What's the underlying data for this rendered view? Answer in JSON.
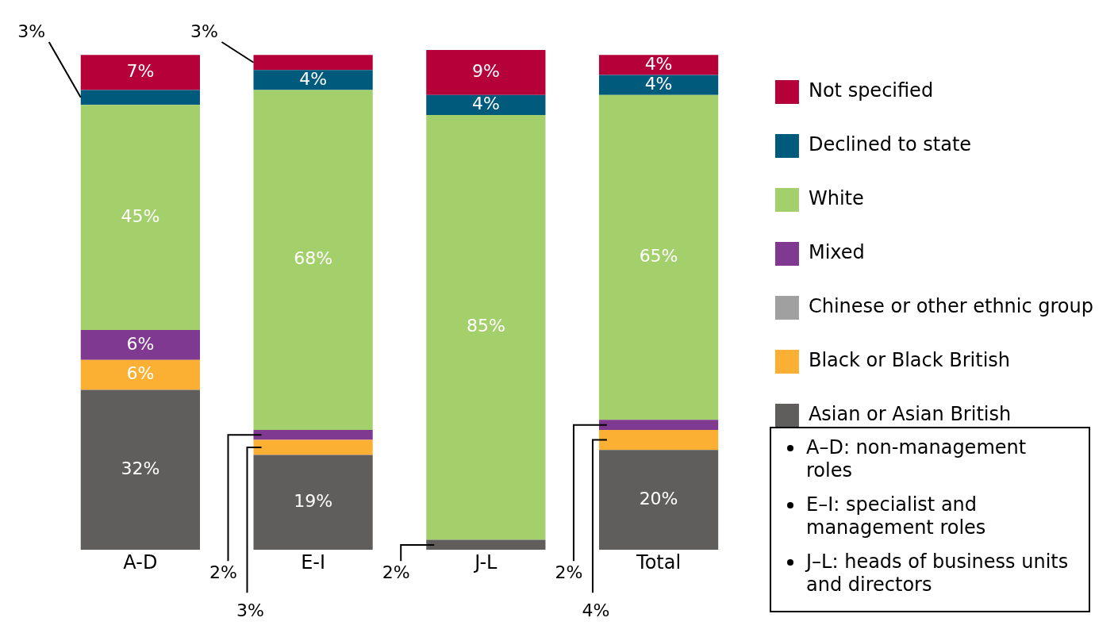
{
  "chart_data": {
    "type": "bar",
    "stacked": true,
    "categories": [
      "A-D",
      "E-I",
      "J-L",
      "Total"
    ],
    "series": [
      {
        "name": "Asian or Asian British",
        "color": "#605e5c",
        "values": [
          32,
          19,
          2,
          20
        ],
        "value_labels": [
          "32%",
          "19%",
          "2%",
          "20%"
        ]
      },
      {
        "name": "Black or Black British",
        "color": "#fbb034",
        "values": [
          6,
          3,
          0,
          4
        ],
        "value_labels": [
          "6%",
          "3%",
          null,
          "4%"
        ]
      },
      {
        "name": "Chinese or other ethnic group",
        "color": "#a0a0a0",
        "values": [
          0,
          0,
          0,
          0
        ],
        "value_labels": [
          null,
          null,
          null,
          null
        ]
      },
      {
        "name": "Mixed",
        "color": "#7f3990",
        "values": [
          6,
          2,
          0,
          2
        ],
        "value_labels": [
          "6%",
          "2%",
          null,
          "2%"
        ]
      },
      {
        "name": "White",
        "color": "#a3d06a",
        "values": [
          45,
          68,
          85,
          65
        ],
        "value_labels": [
          "45%",
          "68%",
          "85%",
          "65%"
        ]
      },
      {
        "name": "Declined to state",
        "color": "#005a7c",
        "values": [
          3,
          4,
          4,
          4
        ],
        "value_labels": [
          "3%",
          "4%",
          "4%",
          "4%"
        ]
      },
      {
        "name": "Not specified",
        "color": "#b5003a",
        "values": [
          7,
          3,
          9,
          4
        ],
        "value_labels": [
          "7%",
          "3%",
          "9%",
          "4%"
        ]
      }
    ],
    "legend": "right",
    "grid": false,
    "annotations": [
      "A–D: non-management roles",
      "E–I: specialist and management roles",
      "J–L: heads of business units and directors"
    ]
  }
}
